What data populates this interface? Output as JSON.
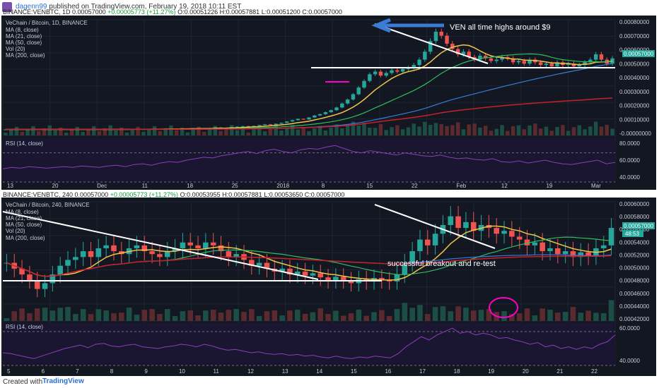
{
  "header": {
    "author": "dagenn99",
    "published": "published on TradingView.com, February 19, 2018 10:11 EST"
  },
  "top": {
    "ohlc_symbol": "BINANCE:VENBTC, 1D",
    "ohlc_price": "0.00057000",
    "ohlc_change": "+0.00005773 (+11.27%)",
    "ohlc_o": "O:0.00051226",
    "ohlc_h": "H:0.00057881",
    "ohlc_l": "L:0.00051200",
    "ohlc_c": "C:0.00057000",
    "legend": [
      "VeChain / Bitcoin, 1D, BINANCE",
      "MA (8, close)",
      "MA (21, close)",
      "MA (50, close)",
      "Vol (20)",
      "MA (200, close)"
    ],
    "rsi_label": "RSI (14, close)",
    "annotation": "VEN all time highs around $9",
    "price_tag": "0.00057000",
    "price_ticks": [
      "0.00080000",
      "0.00070000",
      "0.00060000",
      "0.00050000",
      "0.00040000",
      "0.00030000",
      "0.00020000",
      "0.00010000",
      "-0.00000000"
    ],
    "rsi_ticks": [
      "80.0000",
      "60.0000",
      "40.0000"
    ],
    "date_ticks": [
      "13",
      "20",
      "Dec",
      "11",
      "18",
      "25",
      "2018",
      "8",
      "15",
      "22",
      "Feb",
      "12",
      "19",
      "Mar"
    ]
  },
  "bottom": {
    "ohlc_symbol": "BINANCE:VENBTC, 240",
    "ohlc_price": "0.00057000",
    "ohlc_change": "+0.00005773 (+11.27%)",
    "ohlc_o": "O:0.00053955",
    "ohlc_h": "H:0.00057881",
    "ohlc_l": "L:0.00053650",
    "ohlc_c": "C:0.00057000",
    "legend": [
      "VeChain / Bitcoin, 240, BINANCE",
      "MA (8, close)",
      "MA (21, close)",
      "MA (50, close)",
      "Vol (20)",
      "MA (200, close)"
    ],
    "rsi_label": "RSI (14, close)",
    "annotation": "successful breakout and re-test",
    "price_tag": "0.00057000",
    "countdown": "48:53",
    "price_ticks": [
      "0.00060000",
      "0.00058000",
      "0.00056000",
      "0.00054000",
      "0.00052000",
      "0.00050000",
      "0.00048000",
      "0.00046000",
      "0.00044000",
      "0.00042000"
    ],
    "rsi_ticks": [
      "60.0000",
      "40.0000"
    ],
    "date_ticks": [
      "5",
      "6",
      "7",
      "8",
      "9",
      "10",
      "11",
      "12",
      "13",
      "14",
      "15",
      "16",
      "17",
      "18",
      "19",
      "20",
      "21",
      "22"
    ]
  },
  "footer": {
    "created": "Created with",
    "brand": "TradingView"
  },
  "colors": {
    "bg": "#131722",
    "up": "#26a69a",
    "down": "#ef5350",
    "ma8": "#f0c44a",
    "ma21": "#2ebd5f",
    "ma50": "#3a7bd5",
    "ma200": "#c8202a",
    "rsi": "#8a3fb8",
    "ann": "#ff00c8"
  },
  "chart_data": [
    {
      "type": "candlestick",
      "title": "VeChain / Bitcoin, 1D, BINANCE",
      "series": [
        {
          "name": "MA (8, close)"
        },
        {
          "name": "MA (21, close)"
        },
        {
          "name": "MA (50, close)"
        },
        {
          "name": "Vol (20)"
        },
        {
          "name": "MA (200, close)"
        }
      ],
      "ylim": [
        -1e-05,
        0.00086
      ],
      "closes": [
        3.5e-05,
        3.5e-05,
        3.6e-05,
        3.4e-05,
        3.5e-05,
        3.6e-05,
        3.5e-05,
        3.4e-05,
        3.5e-05,
        3.6e-05,
        3.5e-05,
        3.5e-05,
        3.4e-05,
        3.5e-05,
        3.6e-05,
        3.5e-05,
        3.6e-05,
        3.5e-05,
        3.4e-05,
        3.6e-05,
        3.7e-05,
        3.6e-05,
        3.7e-05,
        3.8e-05,
        3.6e-05,
        3.7e-05,
        3.8e-05,
        3.9e-05,
        3.8e-05,
        4e-05,
        4.1e-05,
        3.9e-05,
        4e-05,
        4.2e-05,
        4.5e-05,
        4.3e-05,
        4.2e-05,
        4.6e-05,
        5e-05,
        4.8e-05,
        4.7e-05,
        5.2e-05,
        5.6e-05,
        6e-05,
        5.8e-05,
        6.2e-05,
        6.8e-05,
        7.4e-05,
        7e-05,
        7.8e-05,
        8.5e-05,
        9.5e-05,
        0.000105,
        0.000115,
        0.00011,
        0.000125,
        0.00014,
        0.00015,
        0.000165,
        0.00018,
        0.0002,
        0.00023,
        0.00026,
        0.0003,
        0.00035,
        0.0004,
        0.00045,
        0.00047,
        0.00044,
        0.00046,
        0.00048,
        0.00047,
        0.00049,
        0.0005,
        0.00052,
        0.00056,
        0.00062,
        0.0007,
        0.00077,
        0.00074,
        0.00068,
        0.00064,
        0.0006,
        0.00062,
        0.00058,
        0.00056,
        0.00059,
        0.00057,
        0.00055,
        0.00056,
        0.00058,
        0.00057,
        0.00054,
        0.00055,
        0.00053,
        0.00056,
        0.00054,
        0.00052,
        0.00053,
        0.00051,
        0.00054,
        0.00052,
        0.00053,
        0.00051,
        0.00052,
        0.00054,
        0.00056,
        0.0006,
        0.00056,
        0.00053,
        0.00057
      ],
      "rsi": [
        48,
        50,
        49,
        51,
        50,
        49,
        50,
        51,
        50,
        52,
        51,
        50,
        52,
        53,
        51,
        54,
        55,
        53,
        56,
        58,
        57,
        60,
        62,
        64,
        63,
        66,
        68,
        70,
        72,
        69,
        73,
        75,
        72,
        70,
        74,
        76,
        75,
        78,
        80,
        76,
        72,
        70,
        73,
        71,
        69,
        67,
        70,
        68,
        66,
        65,
        67,
        64,
        62,
        63,
        61,
        60,
        62,
        58,
        57,
        59,
        56,
        58,
        60,
        57,
        55,
        54,
        56,
        58,
        60,
        55,
        57
      ]
    },
    {
      "type": "candlestick",
      "title": "VeChain / Bitcoin, 240, BINANCE",
      "series": [
        {
          "name": "MA (8, close)"
        },
        {
          "name": "MA (21, close)"
        },
        {
          "name": "MA (50, close)"
        },
        {
          "name": "Vol (20)"
        },
        {
          "name": "MA (200, close)"
        }
      ],
      "ylim": [
        0.00041,
        0.000615
      ],
      "closes": [
        0.00051,
        0.0005,
        0.00049,
        0.00048,
        0.000465,
        0.000475,
        0.00049,
        0.000505,
        0.000515,
        0.00052,
        0.00053,
        0.00052,
        0.000535,
        0.00054,
        0.00053,
        0.000525,
        0.000535,
        0.00054,
        0.00053,
        0.000525,
        0.00052,
        0.00053,
        0.000535,
        0.000545,
        0.00054,
        0.000535,
        0.000545,
        0.00054,
        0.00053,
        0.00052,
        0.000525,
        0.000515,
        0.000505,
        0.00051,
        0.0005,
        0.000495,
        0.0005,
        0.00049,
        0.000495,
        0.000488,
        0.000492,
        0.000485,
        0.00048,
        0.000486,
        0.00048,
        0.000475,
        0.000482,
        0.000478,
        0.000484,
        0.00048,
        0.000478,
        0.00049,
        0.00051,
        0.00053,
        0.00055,
        0.00054,
        0.00056,
        0.000575,
        0.00059,
        0.00057,
        0.00058,
        0.000565,
        0.000575,
        0.00057,
        0.00056,
        0.000565,
        0.000555,
        0.00055,
        0.00054,
        0.000545,
        0.00053,
        0.000535,
        0.000525,
        0.00053,
        0.00052,
        0.000528,
        0.000522,
        0.000535,
        0.00054,
        0.00057
      ],
      "rsi": [
        45,
        44,
        42,
        40,
        38,
        41,
        44,
        47,
        50,
        52,
        54,
        51,
        55,
        56,
        53,
        52,
        54,
        55,
        52,
        51,
        50,
        52,
        53,
        55,
        54,
        52,
        55,
        53,
        50,
        48,
        49,
        47,
        45,
        46,
        44,
        43,
        44,
        42,
        43,
        41,
        42,
        40,
        39,
        41,
        39,
        38,
        40,
        39,
        41,
        40,
        39,
        44,
        52,
        58,
        64,
        60,
        66,
        70,
        74,
        68,
        70,
        66,
        68,
        66,
        62,
        63,
        60,
        58,
        55,
        57,
        52,
        54,
        50,
        52,
        49,
        52,
        50,
        55,
        58,
        66
      ]
    }
  ]
}
